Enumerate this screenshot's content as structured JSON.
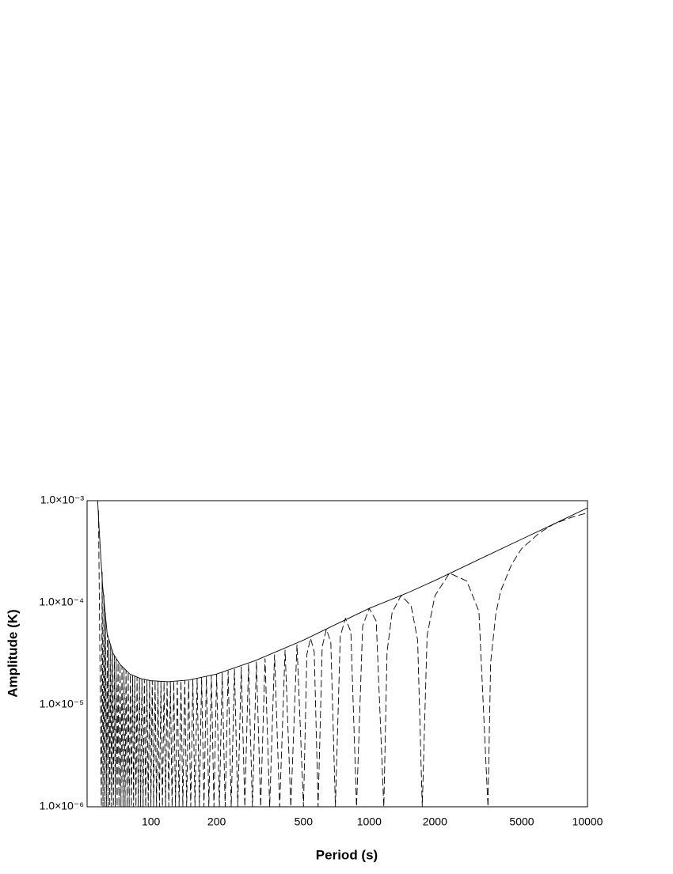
{
  "chart_data": {
    "type": "line",
    "xlabel": "Period (s)",
    "ylabel": "Amplitude (K)",
    "xscale": "log",
    "yscale": "log",
    "grid": false,
    "xlim": [
      51,
      10000
    ],
    "ylim": [
      1e-06,
      0.001
    ],
    "xticks": [
      100,
      200,
      500,
      1000,
      2000,
      5000,
      10000
    ],
    "yticks": [
      {
        "value": 1e-06,
        "label": "1.0×10⁻⁶"
      },
      {
        "value": 1e-05,
        "label": "1.0×10⁻⁵"
      },
      {
        "value": 0.0001,
        "label": "1.0×10⁻⁴"
      },
      {
        "value": 0.001,
        "label": "1.0×10⁻³"
      }
    ],
    "series": [
      {
        "color": "#000000",
        "linestyle": "solid",
        "x": [
          57,
          58,
          60,
          63,
          67,
          72,
          80,
          90,
          100,
          120,
          150,
          200,
          300,
          500,
          700,
          1000,
          1500,
          2000,
          3000,
          5000,
          7000,
          10000
        ],
        "values": [
          0.001,
          0.0005,
          0.00015,
          5e-05,
          3.2e-05,
          2.5e-05,
          2e-05,
          1.8e-05,
          1.72e-05,
          1.68e-05,
          1.75e-05,
          2e-05,
          2.7e-05,
          4.3e-05,
          6.1e-05,
          8.8e-05,
          0.000125,
          0.000165,
          0.00025,
          0.00042,
          0.00059,
          0.00085
        ]
      },
      {
        "color": "#000000",
        "linestyle": "dashed",
        "x": [
          57.5,
          59.3,
          59.8,
          60.3,
          60.9,
          61.4,
          61.9,
          62.5,
          63.1,
          63.6,
          64.2,
          64.8,
          65.4,
          66.0,
          66.7,
          67.3,
          68.0,
          68.6,
          69.3,
          70.0,
          70.7,
          71.4,
          72.2,
          72.9,
          73.7,
          74.5,
          75.3,
          76.1,
          76.9,
          77.8,
          78.7,
          79.5,
          80.5,
          81.4,
          82.4,
          83.3,
          84.3,
          85.4,
          86.4,
          87.5,
          88.6,
          89.7,
          90.9,
          92.1,
          93.3,
          94.6,
          95.9,
          97.2,
          98.6,
          100,
          101.4,
          102.9,
          104.5,
          106.1,
          107.7,
          109.4,
          111.1,
          112.9,
          114.8,
          116.7,
          118.6,
          120.7,
          122.8,
          125,
          127.3,
          129.6,
          132.1,
          134.6,
          137.3,
          140,
          142.9,
          145.8,
          148.9,
          152.2,
          155.6,
          159.1,
          162.8,
          166.7,
          170.7,
          175,
          179.5,
          184.2,
          189.2,
          194.4,
          200,
          205.9,
          212.1,
          218.8,
          225.8,
          233.3,
          241.4,
          250,
          259.3,
          269.2,
          280,
          291.7,
          304.3,
          318.2,
          333.3,
          350,
          368.4,
          388.9,
          411.8,
          437.5,
          466.7,
          500,
          518,
          538.5,
          560,
          583.3,
          609,
          636.4,
          667,
          700,
          737,
          777.8,
          824,
          875,
          933,
          1000,
          1077,
          1166.7,
          1207,
          1273,
          1400,
          1556,
          1667,
          1750,
          1842,
          2000,
          2333,
          2800,
          3182,
          3500,
          3600,
          3800,
          4000,
          4500,
          5000,
          6000,
          7000,
          8500,
          10000
        ],
        "values": [
          0.0008,
          1e-06,
          0.0002,
          1e-06,
          0.00012,
          1e-06,
          8e-05,
          1e-06,
          5e-05,
          1e-06,
          4.4e-05,
          1e-06,
          3.9e-05,
          1e-06,
          3.4e-05,
          1e-06,
          3e-05,
          1e-06,
          2.8e-05,
          1e-06,
          2.6e-05,
          1e-06,
          2.5e-05,
          1e-06,
          2.4e-05,
          1e-06,
          2.3e-05,
          1e-06,
          2.2e-05,
          1e-06,
          2.1e-05,
          1e-06,
          2e-05,
          1e-06,
          1.95e-05,
          1e-06,
          1.9e-05,
          1e-06,
          1.87e-05,
          1e-06,
          1.83e-05,
          1e-06,
          1.8e-05,
          1e-06,
          1.77e-05,
          1e-06,
          1.75e-05,
          1e-06,
          1.73e-05,
          1e-06,
          1.72e-05,
          1e-06,
          1.71e-05,
          1e-06,
          1.7e-05,
          1e-06,
          1.69e-05,
          1e-06,
          1.68e-05,
          1e-06,
          1.68e-05,
          1e-06,
          1.68e-05,
          1e-06,
          1.69e-05,
          1e-06,
          1.7e-05,
          1e-06,
          1.71e-05,
          1e-06,
          1.73e-05,
          1e-06,
          1.75e-05,
          1e-06,
          1.78e-05,
          1e-06,
          1.82e-05,
          1e-06,
          1.86e-05,
          1e-06,
          1.9e-05,
          1e-06,
          1.95e-05,
          1e-06,
          2e-05,
          1e-06,
          2.07e-05,
          1e-06,
          2.15e-05,
          1e-06,
          2.25e-05,
          1e-06,
          2.37e-05,
          1e-06,
          2.5e-05,
          1e-06,
          2.65e-05,
          1e-06,
          2.85e-05,
          1e-06,
          3.1e-05,
          1e-06,
          3.45e-05,
          1e-06,
          3.9e-05,
          1e-06,
          3.1e-05,
          4.5e-05,
          3.3e-05,
          1e-06,
          3.7e-05,
          5.5e-05,
          4.1e-05,
          1e-06,
          4.7e-05,
          7e-05,
          5.2e-05,
          1e-06,
          5.9e-05,
          8.8e-05,
          6.6e-05,
          1e-06,
          3.3e-05,
          8e-05,
          0.000118,
          9.3e-05,
          4.3e-05,
          1e-06,
          4.8e-05,
          0.000117,
          0.000195,
          0.000163,
          8.2e-05,
          1e-06,
          2.6e-05,
          7.7e-05,
          0.00013,
          0.00024,
          0.00034,
          0.00048,
          0.00059,
          0.00069,
          0.00076
        ]
      }
    ]
  }
}
